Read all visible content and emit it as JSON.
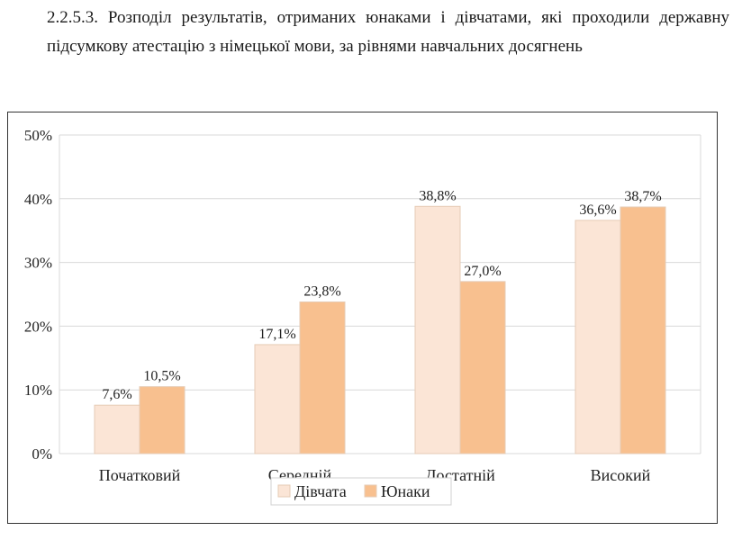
{
  "caption": {
    "text": "2.2.5.3. Розподіл результатів, отриманих юнаками і дівчатами, які проходили державну підсумкову атестацію з німецької мови, за рівнями навчальних досягнень"
  },
  "chart_data": {
    "type": "bar",
    "categories": [
      "Початковий",
      "Середній",
      "Достатній",
      "Високий"
    ],
    "series": [
      {
        "name": "Дівчата",
        "values": [
          7.6,
          17.1,
          38.8,
          36.6
        ],
        "labels": [
          "7,6%",
          "17,1%",
          "38,8%",
          "36,6%"
        ],
        "color": "#fbe5d6"
      },
      {
        "name": "Юнаки",
        "values": [
          10.5,
          23.8,
          27.0,
          38.7
        ],
        "labels": [
          "10,5%",
          "23,8%",
          "27,0%",
          "38,7%"
        ],
        "color": "#f8c08f"
      }
    ],
    "yticks": [
      "0%",
      "10%",
      "20%",
      "30%",
      "40%",
      "50%"
    ],
    "ylim": [
      0,
      50
    ],
    "grid": true,
    "legend_position": "bottom"
  }
}
